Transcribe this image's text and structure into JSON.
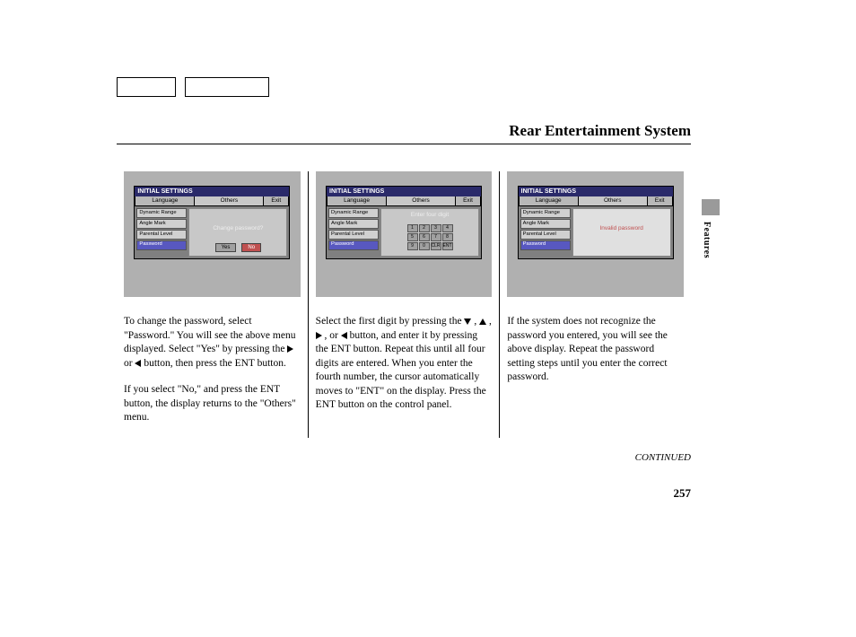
{
  "title": "Rear Entertainment System",
  "topBoxes": {
    "w1": 66,
    "w2": 94
  },
  "sideLabel": "Features",
  "continued": "CONTINUED",
  "pageNumber": "257",
  "screens": {
    "header": "INITIAL SETTINGS",
    "tabs": {
      "t1": "Language",
      "t2": "Others",
      "t3": "Exit"
    },
    "menu": [
      "Dynamic Range",
      "Angle Mark",
      "Parental Level",
      "Password"
    ],
    "s1": {
      "prompt": "Change password?",
      "yes": "Yes",
      "no": "No"
    },
    "s2": {
      "prompt": "Enter four digit",
      "keys": [
        "1",
        "2",
        "3",
        "4",
        "5",
        "6",
        "7",
        "8",
        "9",
        "0",
        "CLR",
        "ENT"
      ]
    },
    "s3": {
      "prompt": "Invalid password"
    }
  },
  "col1": {
    "p1a": "To change the password, select \"Password.\" You will see the above menu displayed. Select \"Yes\" by pressing the ",
    "p1b": " or ",
    "p1c": " button, then press the ENT button.",
    "p2": "If you select \"No,\" and press the ENT button, the display returns to the \"Others\" menu."
  },
  "col2": {
    "p1a": "Select the first digit by pressing the ",
    "sep": " , ",
    "or": " , or ",
    "p1b": " button, and enter it by pressing the ENT button. Repeat this until all four digits are entered. When you enter the fourth number, the cursor automatically moves to \"ENT\" on the display. Press the ENT button on the control panel."
  },
  "col3": {
    "p1": "If the system does not recognize the password you entered, you will see the above display. Repeat the password setting steps until you enter the correct password."
  }
}
